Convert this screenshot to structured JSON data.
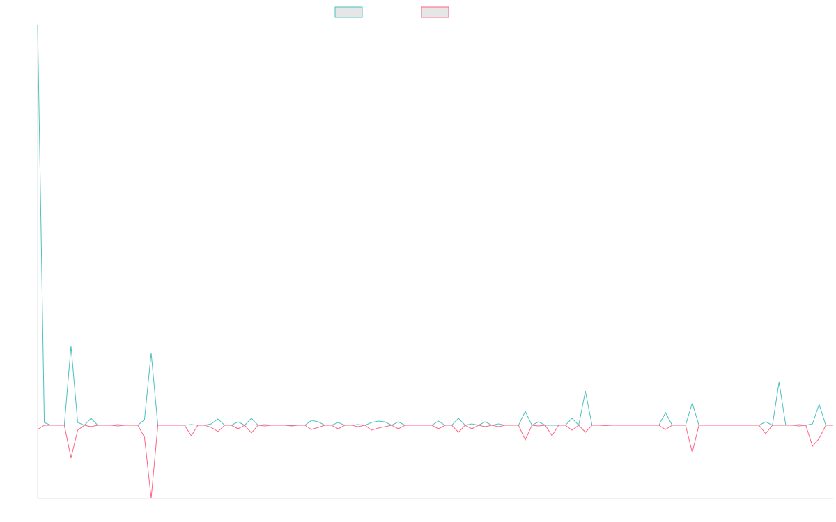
{
  "chart_data": {
    "type": "line",
    "categories": [
      null,
      null,
      null,
      null,
      null,
      null,
      null,
      null,
      null,
      null,
      null,
      null,
      null,
      null,
      null,
      null,
      null,
      null,
      null,
      null,
      null,
      null,
      null,
      null,
      null,
      null,
      null,
      null,
      null,
      null,
      null,
      null,
      null,
      null,
      null,
      null,
      null,
      null,
      null,
      null,
      null,
      null,
      null,
      null,
      null,
      null,
      null,
      null,
      null,
      null,
      null,
      null,
      null,
      null,
      null,
      null,
      null,
      null,
      null,
      null,
      null,
      null,
      null,
      null,
      null,
      null,
      null,
      null,
      null,
      null,
      null,
      null,
      null,
      null,
      null,
      null,
      null,
      null,
      null,
      null,
      null,
      null,
      null,
      null,
      null,
      null,
      null,
      null,
      null,
      null,
      null,
      null,
      null,
      null,
      null,
      null,
      null,
      null,
      null,
      null,
      null,
      null,
      null,
      null,
      null,
      null,
      null,
      null,
      null,
      null,
      null,
      null,
      null,
      null,
      null,
      null,
      null,
      null,
      null,
      null
    ],
    "ylim": [
      -10.5,
      57.5
    ],
    "series": [
      {
        "color": "#4bc0c0",
        "values": [
          57.5,
          0.4,
          0,
          0,
          0,
          11.4,
          0.4,
          0,
          1.0,
          0,
          0,
          0,
          0.1,
          0,
          0,
          0,
          0.8,
          10.4,
          0,
          0,
          0,
          0,
          0,
          0.1,
          0,
          0,
          0.2,
          0.9,
          0,
          0,
          0.5,
          0,
          1.0,
          0,
          0.1,
          0,
          0,
          0,
          0,
          0,
          0,
          0.7,
          0.5,
          0,
          0,
          0.4,
          0,
          0,
          0.1,
          0,
          0.4,
          0.6,
          0.5,
          0,
          0.5,
          0,
          0,
          0,
          0,
          0,
          0.6,
          0,
          0,
          1.0,
          0,
          0.2,
          0,
          0.5,
          0,
          0.2,
          0,
          0,
          0,
          2.0,
          0,
          0.5,
          0,
          0,
          0,
          0,
          1.0,
          0,
          4.9,
          0,
          0,
          0.05,
          0,
          0,
          0,
          0,
          0,
          0,
          0,
          0,
          1.8,
          0,
          0,
          0,
          3.2,
          0,
          0,
          0,
          0,
          0,
          0,
          0,
          0,
          0,
          0,
          0.5,
          0,
          6.2,
          0,
          0,
          0.1,
          0,
          0.2,
          3.0,
          0,
          0
        ]
      },
      {
        "color": "#ff6384",
        "values": [
          -0.6,
          0,
          0,
          0,
          0,
          -4.7,
          -0.7,
          0,
          -0.2,
          0,
          0,
          0,
          -0.1,
          0,
          0,
          0,
          -1.7,
          -10.5,
          0,
          0,
          0,
          0,
          0,
          -1.5,
          0,
          0,
          -0.3,
          -0.9,
          0,
          0,
          -0.5,
          0,
          -1.1,
          0,
          -0.1,
          0,
          0,
          0,
          -0.1,
          0,
          0,
          -0.6,
          -0.3,
          0,
          0,
          -0.5,
          0,
          0,
          -0.2,
          0,
          -0.7,
          -0.4,
          -0.2,
          0,
          -0.5,
          0,
          0,
          0,
          0,
          0,
          -0.5,
          0,
          0,
          -1.0,
          0,
          -0.5,
          0,
          -0.2,
          0,
          -0.2,
          0,
          0,
          0,
          -2.1,
          0,
          -0.1,
          0,
          -1.5,
          0,
          0,
          -0.7,
          0,
          -1.0,
          0,
          0,
          -0.05,
          0,
          0,
          0,
          0,
          0,
          0,
          0,
          0,
          -0.6,
          0,
          0,
          0,
          -3.9,
          0,
          0,
          0,
          0,
          0,
          0,
          0,
          0,
          0,
          0,
          -1.2,
          0,
          0,
          0,
          0,
          -0.1,
          0,
          -3.0,
          -1.9,
          0,
          0
        ]
      }
    ]
  }
}
